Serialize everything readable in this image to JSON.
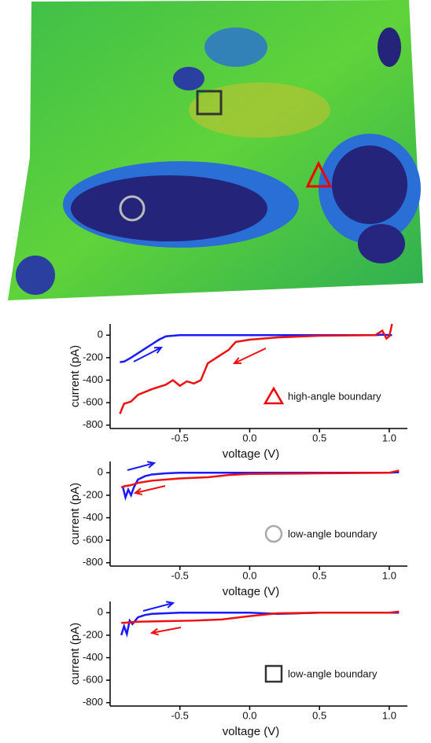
{
  "chart_data": [
    {
      "type": "line",
      "xlabel": "voltage (V)",
      "ylabel": "current (pA)",
      "annotation": "high-angle boundary",
      "xlim": [
        -1.0,
        1.13
      ],
      "ylim": [
        -830,
        100
      ],
      "xticks": [
        -0.5,
        {
          "value": 0,
          "label": "0.0"
        },
        0.5,
        {
          "value": 1,
          "label": "1.0"
        }
      ],
      "yticks": [
        0,
        -200,
        -400,
        -600,
        -800
      ],
      "series": [
        {
          "color": "#1a1aff",
          "x": [
            -0.93,
            -0.9,
            -0.85,
            -0.8,
            -0.75,
            -0.7,
            -0.65,
            -0.6,
            -0.5,
            0,
            0.5,
            0.9,
            0.95,
            1.0,
            1.02
          ],
          "values": [
            -240,
            -235,
            -200,
            -160,
            -120,
            -80,
            -40,
            -10,
            0,
            0,
            0,
            0,
            5,
            0,
            0
          ]
        },
        {
          "color": "#ee1111",
          "x": [
            1.02,
            1.0,
            0.98,
            0.95,
            0.9,
            0.5,
            0.2,
            0.0,
            -0.1,
            -0.15,
            -0.2,
            -0.3,
            -0.35,
            -0.4,
            -0.45,
            -0.5,
            -0.55,
            -0.6,
            -0.7,
            -0.8,
            -0.85,
            -0.9,
            -0.93
          ],
          "values": [
            100,
            -10,
            -30,
            40,
            0,
            -5,
            -20,
            -40,
            -60,
            -130,
            -170,
            -250,
            -400,
            -430,
            -410,
            -450,
            -400,
            -440,
            -480,
            -530,
            -590,
            -610,
            -700
          ]
        }
      ]
    },
    {
      "type": "line",
      "xlabel": "voltage (V)",
      "ylabel": "current (pA)",
      "annotation": "low-angle boundary",
      "xlim": [
        -1.0,
        1.13
      ],
      "ylim": [
        -830,
        100
      ],
      "xticks": [
        -0.5,
        {
          "value": 0,
          "label": "0.0"
        },
        0.5,
        {
          "value": 1,
          "label": "1.0"
        }
      ],
      "yticks": [
        0,
        -200,
        -400,
        -600,
        -800
      ],
      "series": [
        {
          "color": "#1a1aff",
          "x": [
            -0.91,
            -0.89,
            -0.87,
            -0.85,
            -0.83,
            -0.8,
            -0.75,
            -0.7,
            -0.6,
            -0.5,
            0,
            0.5,
            1.0,
            1.07
          ],
          "values": [
            -120,
            -220,
            -150,
            -200,
            -130,
            -60,
            -30,
            -15,
            -5,
            0,
            0,
            0,
            0,
            5
          ]
        },
        {
          "color": "#ee1111",
          "x": [
            1.07,
            1.0,
            0.5,
            0.0,
            -0.15,
            -0.3,
            -0.5,
            -0.7,
            -0.8,
            -0.85,
            -0.9,
            -0.92
          ],
          "values": [
            20,
            0,
            -5,
            -10,
            -20,
            -40,
            -50,
            -70,
            -90,
            -110,
            -120,
            -130
          ]
        }
      ]
    },
    {
      "type": "line",
      "xlabel": "voltage (V)",
      "ylabel": "current (pA)",
      "annotation": "low-angle boundary",
      "xlim": [
        -1.0,
        1.13
      ],
      "ylim": [
        -830,
        100
      ],
      "xticks": [
        -0.5,
        {
          "value": 0,
          "label": "0.0"
        },
        0.5,
        {
          "value": 1,
          "label": "1.0"
        }
      ],
      "yticks": [
        0,
        -200,
        -400,
        -600,
        -800
      ],
      "series": [
        {
          "color": "#1a1aff",
          "x": [
            -0.92,
            -0.9,
            -0.88,
            -0.86,
            -0.84,
            -0.8,
            -0.75,
            -0.7,
            -0.6,
            -0.5,
            0,
            0.2,
            0.5,
            1.0,
            1.07
          ],
          "values": [
            -200,
            -120,
            -190,
            -70,
            -100,
            -40,
            -20,
            -10,
            -5,
            0,
            0,
            -10,
            0,
            0,
            0
          ]
        },
        {
          "color": "#ee1111",
          "x": [
            1.07,
            1.0,
            0.5,
            0.2,
            0.0,
            -0.2,
            -0.4,
            -0.6,
            -0.8,
            -0.9,
            -0.92
          ],
          "values": [
            10,
            0,
            0,
            -5,
            -30,
            -60,
            -70,
            -75,
            -80,
            -90,
            -90
          ]
        }
      ]
    }
  ]
}
